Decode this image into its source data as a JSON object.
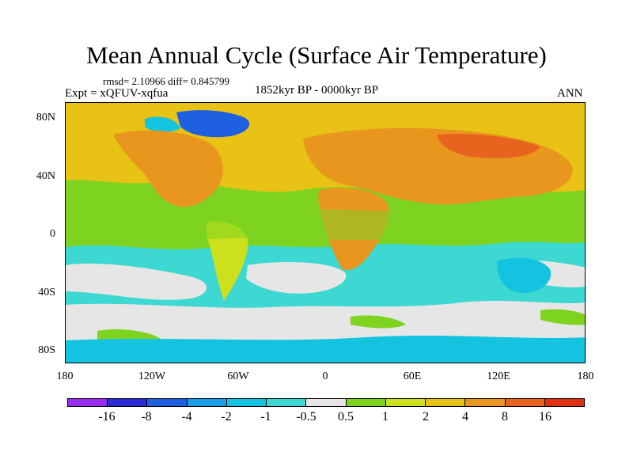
{
  "title": "Mean Annual Cycle (Surface Air Temperature)",
  "stats": "rmsd= 2.10966 diff= 0.845799",
  "experiment": "Expt = xQFUV-xqfua",
  "period": "1852kyr BP - 0000kyr BP",
  "season": "ANN",
  "lat_labels": [
    "80N",
    "40N",
    "0",
    "40S",
    "80S"
  ],
  "lon_labels": [
    "180",
    "120W",
    "60W",
    "0",
    "60E",
    "120E",
    "180"
  ],
  "colorbar": {
    "labels": [
      "-16",
      "-8",
      "-4",
      "-2",
      "-1",
      "-0.5",
      "0.5",
      "1",
      "2",
      "4",
      "8",
      "16"
    ],
    "colors": [
      "#9b2df0",
      "#2a2ad6",
      "#1f60e0",
      "#1aa0e6",
      "#14c3e0",
      "#3dd8d2",
      "#e6e6e6",
      "#7ed321",
      "#cde01e",
      "#e8c214",
      "#e8961e",
      "#e8641e",
      "#e03210"
    ]
  },
  "palette": {
    "ocean_north": "#e8c214",
    "ocean_south": "#3dd8d2",
    "neutral": "#e6e6e6",
    "tropics": "#7ed321",
    "land_warm": "#e8961e",
    "land_hot": "#e8641e",
    "cold_blue": "#1f60e0",
    "mid_blue": "#14c3e0",
    "yellow_green": "#cde01e"
  }
}
